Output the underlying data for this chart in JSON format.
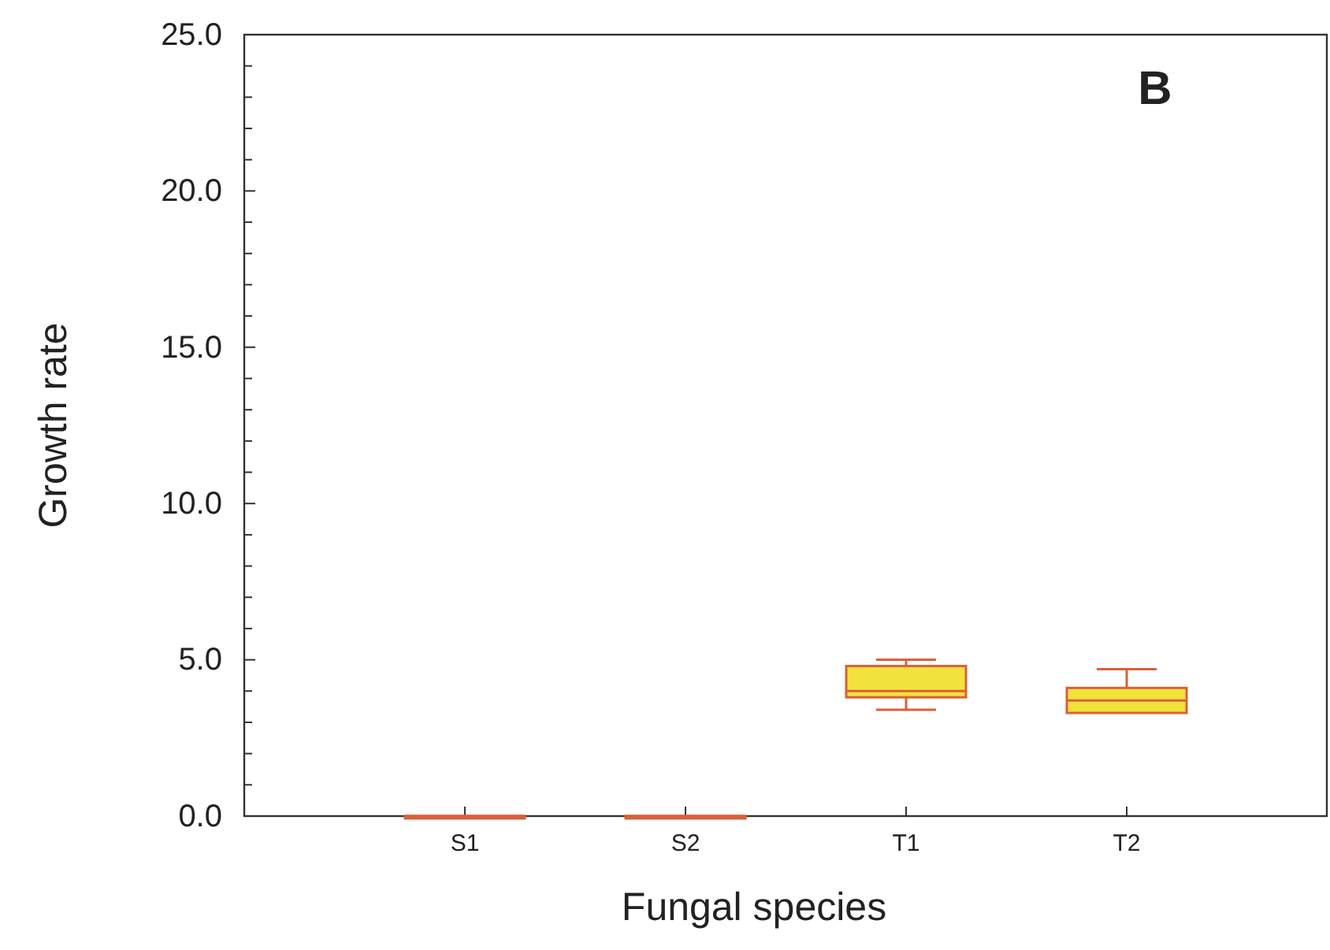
{
  "chart_data": {
    "type": "box",
    "xlabel": "Fungal species",
    "ylabel": "Growth rate",
    "annotations": [
      "B"
    ],
    "categories": [
      "S1",
      "S2",
      "T1",
      "T2"
    ],
    "color": "#f2e23c",
    "boxes": [
      {
        "low": 0,
        "q1": 0,
        "median": 0,
        "q3": 0,
        "high": 0
      },
      {
        "low": 0,
        "q1": 0,
        "median": 0,
        "q3": 0,
        "high": 0
      },
      {
        "low": 3.4,
        "q1": 3.8,
        "median": 4.0,
        "q3": 4.8,
        "high": 5.0
      },
      {
        "low": 3.3,
        "q1": 3.3,
        "median": 3.7,
        "q3": 4.1,
        "high": 4.7
      }
    ],
    "ylim": [
      0,
      25
    ],
    "yticks": [
      {
        "value": 0,
        "label": "0.0"
      },
      {
        "value": 1,
        "label": null
      },
      {
        "value": 2,
        "label": null
      },
      {
        "value": 3,
        "label": null
      },
      {
        "value": 4,
        "label": null
      },
      {
        "value": 5,
        "label": "5.0"
      },
      {
        "value": 6,
        "label": null
      },
      {
        "value": 7,
        "label": null
      },
      {
        "value": 8,
        "label": null
      },
      {
        "value": 9,
        "label": null
      },
      {
        "value": 10,
        "label": "10.0"
      },
      {
        "value": 11,
        "label": null
      },
      {
        "value": 12,
        "label": null
      },
      {
        "value": 13,
        "label": null
      },
      {
        "value": 14,
        "label": null
      },
      {
        "value": 15,
        "label": "15.0"
      },
      {
        "value": 16,
        "label": null
      },
      {
        "value": 17,
        "label": null
      },
      {
        "value": 18,
        "label": null
      },
      {
        "value": 19,
        "label": null
      },
      {
        "value": 20,
        "label": "20.0"
      },
      {
        "value": 21,
        "label": null
      },
      {
        "value": 22,
        "label": null
      },
      {
        "value": 23,
        "label": null
      },
      {
        "value": 24,
        "label": null
      },
      {
        "value": 25,
        "label": "25.0"
      }
    ]
  }
}
